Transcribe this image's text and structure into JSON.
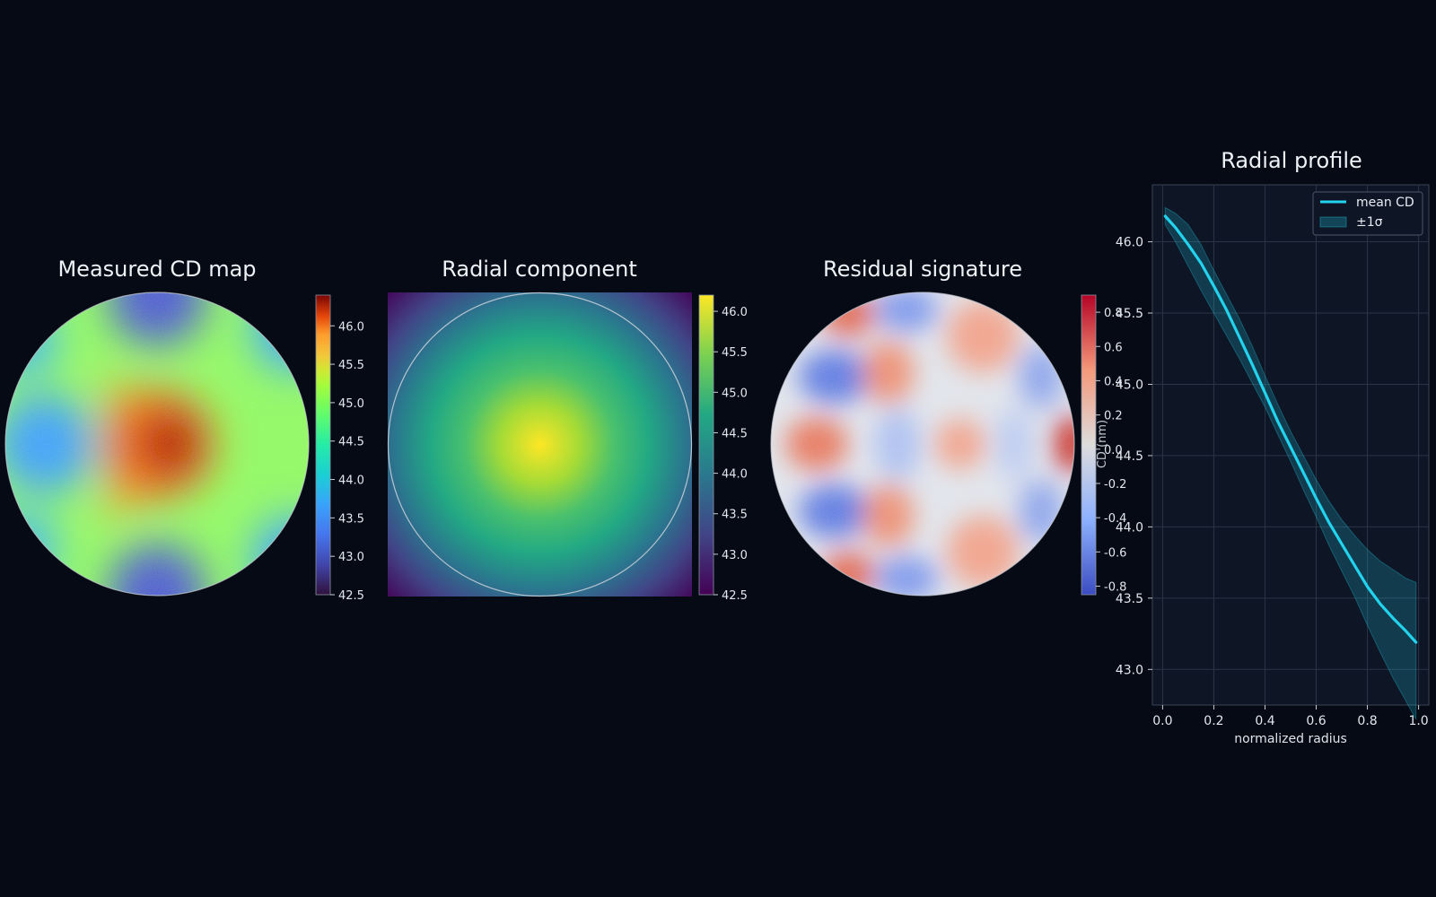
{
  "chart_data": [
    {
      "type": "heatmap",
      "title": "Measured CD map",
      "colormap": "turbo",
      "shape": "circle",
      "colorbar": {
        "range": [
          42.5,
          46.4
        ],
        "ticks": [
          "46.0",
          "45.5",
          "45.0",
          "44.5",
          "44.0",
          "43.5",
          "43.0",
          "42.5"
        ]
      }
    },
    {
      "type": "heatmap",
      "title": "Radial component",
      "colormap": "viridis",
      "shape": "square",
      "colorbar": {
        "range": [
          42.5,
          46.2
        ],
        "ticks": [
          "46.0",
          "45.5",
          "45.0",
          "44.5",
          "44.0",
          "43.5",
          "43.0",
          "42.5"
        ]
      }
    },
    {
      "type": "heatmap",
      "title": "Residual signature",
      "colormap": "coolwarm",
      "shape": "circle",
      "colorbar": {
        "label": "CD (nm)",
        "range": [
          -0.85,
          0.9
        ],
        "ticks": [
          "0.8",
          "0.6",
          "0.4",
          "0.2",
          "0.0",
          "-0.2",
          "-0.4",
          "-0.6",
          "-0.8"
        ]
      }
    },
    {
      "type": "line",
      "title": "Radial profile",
      "xlabel": "normalized radius",
      "ylabel": "",
      "xlim": [
        -0.04,
        1.04
      ],
      "ylim": [
        42.75,
        46.4
      ],
      "xticks": [
        "0.0",
        "0.2",
        "0.4",
        "0.6",
        "0.8",
        "1.0"
      ],
      "yticks": [
        "46.0",
        "45.5",
        "45.0",
        "44.5",
        "44.0",
        "43.5",
        "43.0"
      ],
      "grid": true,
      "legend": "top-right",
      "series": [
        {
          "name": "mean CD",
          "color": "#22d3ee",
          "x": [
            0.01,
            0.05,
            0.1,
            0.15,
            0.2,
            0.25,
            0.3,
            0.35,
            0.4,
            0.45,
            0.5,
            0.55,
            0.6,
            0.65,
            0.7,
            0.75,
            0.8,
            0.85,
            0.9,
            0.95,
            0.99
          ],
          "y": [
            46.18,
            46.1,
            45.98,
            45.85,
            45.69,
            45.52,
            45.33,
            45.14,
            44.94,
            44.74,
            44.56,
            44.38,
            44.2,
            44.03,
            43.88,
            43.73,
            43.58,
            43.46,
            43.36,
            43.27,
            43.19
          ]
        },
        {
          "name": "±1σ",
          "type": "band",
          "color": "#22d3ee",
          "x": [
            0.01,
            0.05,
            0.1,
            0.15,
            0.2,
            0.25,
            0.3,
            0.35,
            0.4,
            0.45,
            0.5,
            0.55,
            0.6,
            0.65,
            0.7,
            0.75,
            0.8,
            0.85,
            0.9,
            0.95,
            0.99
          ],
          "lower": [
            46.12,
            46.0,
            45.83,
            45.66,
            45.5,
            45.34,
            45.18,
            45.01,
            44.84,
            44.65,
            44.46,
            44.26,
            44.07,
            43.87,
            43.69,
            43.51,
            43.31,
            43.12,
            42.94,
            42.78,
            42.65
          ],
          "upper": [
            46.24,
            46.2,
            46.12,
            45.98,
            45.8,
            45.63,
            45.46,
            45.27,
            45.06,
            44.86,
            44.67,
            44.5,
            44.33,
            44.18,
            44.05,
            43.94,
            43.84,
            43.76,
            43.7,
            43.64,
            43.61
          ]
        }
      ]
    }
  ]
}
